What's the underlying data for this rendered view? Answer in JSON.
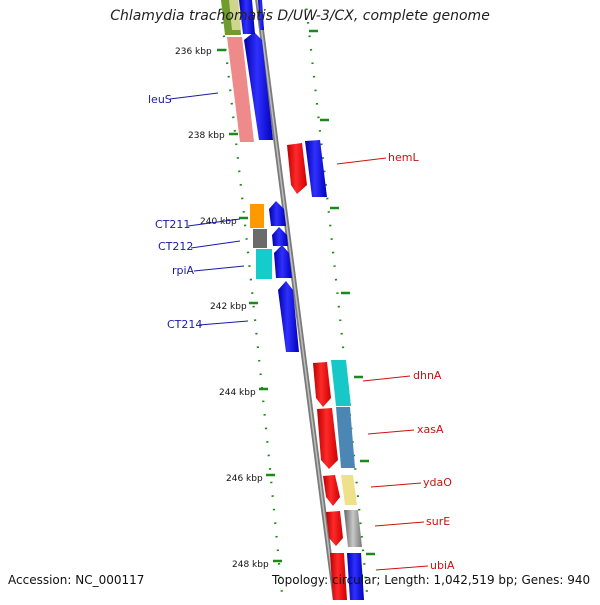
{
  "title": "Chlamydia trachomatis D/UW-3/CX, complete genome",
  "footer": {
    "accession": "Accession: NC_000117",
    "summary": "Topology: circular; Length: 1,042,519 bp; Genes: 940"
  },
  "colors": {
    "backbone": "#8a8a8a",
    "tick": "#1a8a1a",
    "label_left": "#1a1aaa",
    "label_right": "#cc1111",
    "strand_plus": "#0000ee",
    "strand_minus": "#ee0000"
  },
  "scale_labels": [
    "236 kbp",
    "238 kbp",
    "240 kbp",
    "242 kbp",
    "244 kbp",
    "246 kbp",
    "248 kbp"
  ],
  "left_labels": [
    "leuS",
    "CT211",
    "CT212",
    "rpiA",
    "CT214"
  ],
  "right_labels": [
    "hemL",
    "dhnA",
    "xasA",
    "ydaO",
    "surE",
    "ubiA"
  ]
}
